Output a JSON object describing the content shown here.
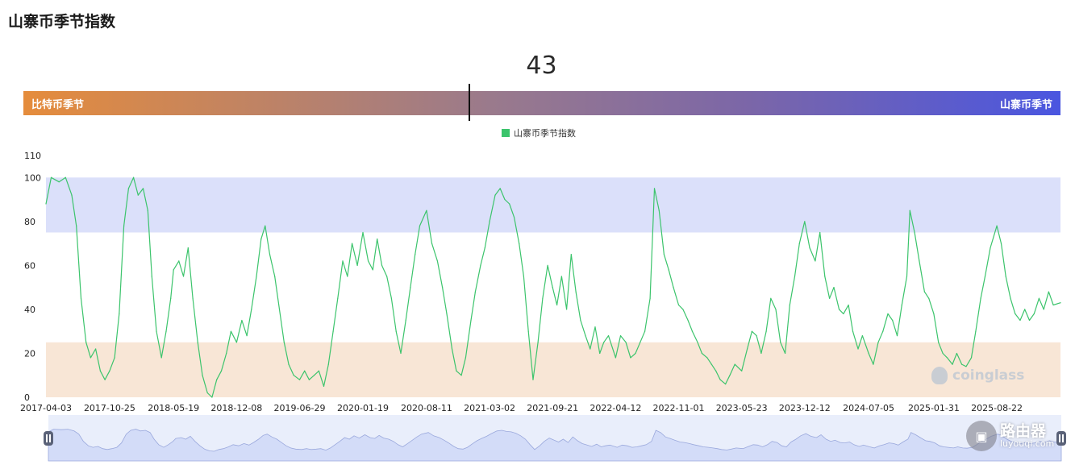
{
  "page": {
    "title": "山寨币季节指数"
  },
  "indicator": {
    "value": "43",
    "left_label": "比特币季节",
    "right_label": "山寨币季节",
    "position_fraction": 0.43
  },
  "legend": {
    "label": "山寨币季节指数"
  },
  "colors": {
    "series": "#3cc46c",
    "upper_band": "#dbe0fa",
    "lower_band": "#f8e6d6",
    "gradient_start": "#e58c3c",
    "gradient_end": "#4a56e0"
  },
  "watermark": {
    "text": "coinglass"
  },
  "site_badge": {
    "name": "路由器",
    "url": "luyouqi.com"
  },
  "chart_data": {
    "type": "line",
    "series": [
      {
        "name": "山寨币季节指数",
        "color": "#3cc46c"
      }
    ],
    "x_ticks": [
      "2017-04-03",
      "2017-10-25",
      "2018-05-19",
      "2018-12-08",
      "2019-06-29",
      "2020-01-19",
      "2020-08-11",
      "2021-03-02",
      "2021-09-21",
      "2022-04-12",
      "2022-11-01",
      "2023-05-23",
      "2023-12-12",
      "2024-07-05",
      "2025-01-31",
      "2025-08-22"
    ],
    "y_ticks": [
      0,
      20,
      40,
      60,
      80,
      100,
      110
    ],
    "ylim": [
      0,
      110
    ],
    "bands": [
      {
        "from": 75,
        "to": 100,
        "label": "altcoin season"
      },
      {
        "from": 0,
        "to": 25,
        "label": "bitcoin season"
      }
    ],
    "x_range": [
      "2017-04-03",
      "2026-03-15"
    ],
    "points": [
      [
        "2017-04-03",
        88
      ],
      [
        "2017-04-20",
        100
      ],
      [
        "2017-05-15",
        98
      ],
      [
        "2017-06-05",
        100
      ],
      [
        "2017-06-25",
        92
      ],
      [
        "2017-07-10",
        78
      ],
      [
        "2017-07-25",
        45
      ],
      [
        "2017-08-10",
        25
      ],
      [
        "2017-08-25",
        18
      ],
      [
        "2017-09-10",
        22
      ],
      [
        "2017-09-25",
        12
      ],
      [
        "2017-10-10",
        8
      ],
      [
        "2017-10-25",
        12
      ],
      [
        "2017-11-10",
        18
      ],
      [
        "2017-11-25",
        38
      ],
      [
        "2017-12-10",
        78
      ],
      [
        "2017-12-25",
        95
      ],
      [
        "2018-01-10",
        100
      ],
      [
        "2018-01-25",
        92
      ],
      [
        "2018-02-10",
        95
      ],
      [
        "2018-02-25",
        85
      ],
      [
        "2018-03-10",
        55
      ],
      [
        "2018-03-25",
        30
      ],
      [
        "2018-04-10",
        18
      ],
      [
        "2018-04-25",
        30
      ],
      [
        "2018-05-10",
        45
      ],
      [
        "2018-05-19",
        58
      ],
      [
        "2018-06-05",
        62
      ],
      [
        "2018-06-20",
        55
      ],
      [
        "2018-07-05",
        68
      ],
      [
        "2018-07-20",
        45
      ],
      [
        "2018-08-05",
        25
      ],
      [
        "2018-08-20",
        10
      ],
      [
        "2018-09-05",
        2
      ],
      [
        "2018-09-20",
        0
      ],
      [
        "2018-10-05",
        8
      ],
      [
        "2018-10-20",
        12
      ],
      [
        "2018-11-05",
        20
      ],
      [
        "2018-11-20",
        30
      ],
      [
        "2018-12-08",
        25
      ],
      [
        "2018-12-25",
        35
      ],
      [
        "2019-01-10",
        28
      ],
      [
        "2019-01-25",
        40
      ],
      [
        "2019-02-10",
        55
      ],
      [
        "2019-02-25",
        72
      ],
      [
        "2019-03-10",
        78
      ],
      [
        "2019-03-25",
        65
      ],
      [
        "2019-04-10",
        55
      ],
      [
        "2019-04-25",
        40
      ],
      [
        "2019-05-10",
        25
      ],
      [
        "2019-05-25",
        15
      ],
      [
        "2019-06-10",
        10
      ],
      [
        "2019-06-29",
        8
      ],
      [
        "2019-07-15",
        12
      ],
      [
        "2019-07-30",
        8
      ],
      [
        "2019-08-15",
        10
      ],
      [
        "2019-08-30",
        12
      ],
      [
        "2019-09-15",
        5
      ],
      [
        "2019-09-30",
        15
      ],
      [
        "2019-10-15",
        30
      ],
      [
        "2019-10-30",
        45
      ],
      [
        "2019-11-15",
        62
      ],
      [
        "2019-11-30",
        55
      ],
      [
        "2019-12-15",
        70
      ],
      [
        "2020-01-01",
        60
      ],
      [
        "2020-01-19",
        75
      ],
      [
        "2020-02-05",
        62
      ],
      [
        "2020-02-20",
        58
      ],
      [
        "2020-03-05",
        72
      ],
      [
        "2020-03-20",
        60
      ],
      [
        "2020-04-05",
        55
      ],
      [
        "2020-04-20",
        45
      ],
      [
        "2020-05-05",
        30
      ],
      [
        "2020-05-20",
        20
      ],
      [
        "2020-06-05",
        35
      ],
      [
        "2020-06-20",
        50
      ],
      [
        "2020-07-05",
        65
      ],
      [
        "2020-07-20",
        78
      ],
      [
        "2020-08-11",
        85
      ],
      [
        "2020-08-28",
        70
      ],
      [
        "2020-09-15",
        62
      ],
      [
        "2020-10-01",
        50
      ],
      [
        "2020-10-15",
        38
      ],
      [
        "2020-11-01",
        22
      ],
      [
        "2020-11-15",
        12
      ],
      [
        "2020-12-01",
        10
      ],
      [
        "2020-12-15",
        18
      ],
      [
        "2021-01-01",
        35
      ],
      [
        "2021-01-15",
        48
      ],
      [
        "2021-02-01",
        60
      ],
      [
        "2021-02-15",
        68
      ],
      [
        "2021-03-02",
        80
      ],
      [
        "2021-03-20",
        92
      ],
      [
        "2021-04-05",
        95
      ],
      [
        "2021-04-20",
        90
      ],
      [
        "2021-05-05",
        88
      ],
      [
        "2021-05-20",
        82
      ],
      [
        "2021-06-05",
        70
      ],
      [
        "2021-06-20",
        55
      ],
      [
        "2021-07-05",
        30
      ],
      [
        "2021-07-20",
        8
      ],
      [
        "2021-08-05",
        25
      ],
      [
        "2021-08-20",
        45
      ],
      [
        "2021-09-05",
        60
      ],
      [
        "2021-09-21",
        50
      ],
      [
        "2021-10-05",
        42
      ],
      [
        "2021-10-20",
        55
      ],
      [
        "2021-11-05",
        40
      ],
      [
        "2021-11-20",
        65
      ],
      [
        "2021-12-05",
        48
      ],
      [
        "2021-12-20",
        35
      ],
      [
        "2022-01-05",
        28
      ],
      [
        "2022-01-20",
        22
      ],
      [
        "2022-02-05",
        32
      ],
      [
        "2022-02-20",
        20
      ],
      [
        "2022-03-05",
        25
      ],
      [
        "2022-03-20",
        28
      ],
      [
        "2022-04-12",
        18
      ],
      [
        "2022-04-28",
        28
      ],
      [
        "2022-05-15",
        25
      ],
      [
        "2022-05-30",
        18
      ],
      [
        "2022-06-15",
        20
      ],
      [
        "2022-06-30",
        25
      ],
      [
        "2022-07-15",
        30
      ],
      [
        "2022-08-01",
        45
      ],
      [
        "2022-08-15",
        95
      ],
      [
        "2022-08-30",
        85
      ],
      [
        "2022-09-15",
        65
      ],
      [
        "2022-09-30",
        58
      ],
      [
        "2022-10-15",
        50
      ],
      [
        "2022-11-01",
        42
      ],
      [
        "2022-11-15",
        40
      ],
      [
        "2022-12-01",
        35
      ],
      [
        "2022-12-15",
        30
      ],
      [
        "2023-01-01",
        25
      ],
      [
        "2023-01-15",
        20
      ],
      [
        "2023-02-01",
        18
      ],
      [
        "2023-02-15",
        15
      ],
      [
        "2023-03-01",
        12
      ],
      [
        "2023-03-15",
        8
      ],
      [
        "2023-04-01",
        6
      ],
      [
        "2023-04-15",
        10
      ],
      [
        "2023-05-01",
        15
      ],
      [
        "2023-05-23",
        12
      ],
      [
        "2023-06-10",
        22
      ],
      [
        "2023-06-25",
        30
      ],
      [
        "2023-07-10",
        28
      ],
      [
        "2023-07-25",
        20
      ],
      [
        "2023-08-10",
        30
      ],
      [
        "2023-08-25",
        45
      ],
      [
        "2023-09-10",
        40
      ],
      [
        "2023-09-25",
        25
      ],
      [
        "2023-10-10",
        20
      ],
      [
        "2023-10-25",
        42
      ],
      [
        "2023-11-10",
        55
      ],
      [
        "2023-11-25",
        70
      ],
      [
        "2023-12-12",
        80
      ],
      [
        "2023-12-28",
        68
      ],
      [
        "2024-01-15",
        62
      ],
      [
        "2024-01-30",
        75
      ],
      [
        "2024-02-15",
        55
      ],
      [
        "2024-03-01",
        45
      ],
      [
        "2024-03-15",
        50
      ],
      [
        "2024-04-01",
        40
      ],
      [
        "2024-04-15",
        38
      ],
      [
        "2024-05-01",
        42
      ],
      [
        "2024-05-15",
        30
      ],
      [
        "2024-06-01",
        22
      ],
      [
        "2024-06-15",
        28
      ],
      [
        "2024-07-05",
        20
      ],
      [
        "2024-07-20",
        15
      ],
      [
        "2024-08-05",
        25
      ],
      [
        "2024-08-20",
        30
      ],
      [
        "2024-09-05",
        38
      ],
      [
        "2024-09-20",
        35
      ],
      [
        "2024-10-05",
        28
      ],
      [
        "2024-10-20",
        42
      ],
      [
        "2024-11-05",
        55
      ],
      [
        "2024-11-15",
        85
      ],
      [
        "2024-11-30",
        75
      ],
      [
        "2024-12-15",
        62
      ],
      [
        "2025-01-01",
        48
      ],
      [
        "2025-01-15",
        45
      ],
      [
        "2025-01-31",
        38
      ],
      [
        "2025-02-15",
        25
      ],
      [
        "2025-03-01",
        20
      ],
      [
        "2025-03-15",
        18
      ],
      [
        "2025-04-01",
        15
      ],
      [
        "2025-04-15",
        20
      ],
      [
        "2025-05-01",
        15
      ],
      [
        "2025-05-15",
        14
      ],
      [
        "2025-06-01",
        18
      ],
      [
        "2025-06-15",
        30
      ],
      [
        "2025-07-01",
        45
      ],
      [
        "2025-07-15",
        55
      ],
      [
        "2025-08-01",
        68
      ],
      [
        "2025-08-22",
        78
      ],
      [
        "2025-09-05",
        70
      ],
      [
        "2025-09-20",
        55
      ],
      [
        "2025-10-05",
        45
      ],
      [
        "2025-10-20",
        38
      ],
      [
        "2025-11-05",
        35
      ],
      [
        "2025-11-20",
        40
      ],
      [
        "2025-12-05",
        35
      ],
      [
        "2025-12-20",
        38
      ],
      [
        "2026-01-05",
        45
      ],
      [
        "2026-01-20",
        40
      ],
      [
        "2026-02-05",
        48
      ],
      [
        "2026-02-20",
        42
      ],
      [
        "2026-03-15",
        43
      ]
    ]
  }
}
